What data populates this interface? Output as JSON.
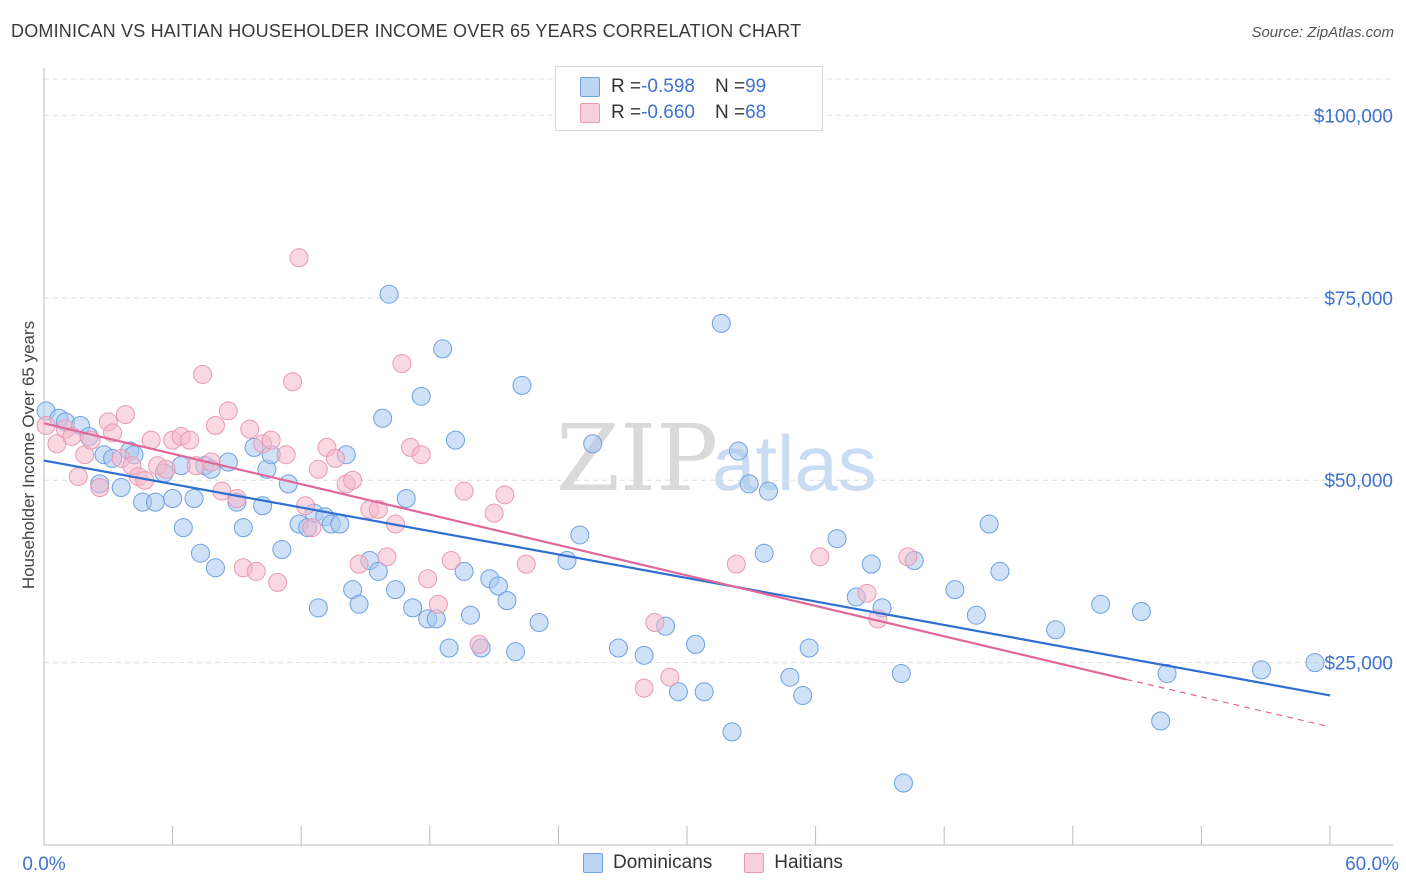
{
  "title": "DOMINICAN VS HAITIAN HOUSEHOLDER INCOME OVER 65 YEARS CORRELATION CHART",
  "source": "Source: ZipAtlas.com",
  "watermark": {
    "zip": "ZIP",
    "atlas": "atlas"
  },
  "legend_top": [
    {
      "r_label": "R = ",
      "r_value": "-0.598",
      "n_label": "N = ",
      "n_value": "99",
      "color": "#a8c8f0"
    },
    {
      "r_label": "R = ",
      "r_value": "-0.660",
      "n_label": "N = ",
      "n_value": "68",
      "color": "#f4b8cb"
    }
  ],
  "chart_data": {
    "type": "scatter",
    "title": "DOMINICAN VS HAITIAN HOUSEHOLDER INCOME OVER 65 YEARS CORRELATION CHART",
    "xlabel": "",
    "ylabel": "Householder Income Over 65 years",
    "xlim": [
      0,
      60
    ],
    "ylim": [
      0,
      105000
    ],
    "x_tick_labels": [
      "0.0%",
      "60.0%"
    ],
    "y_ticks": [
      25000,
      50000,
      75000,
      100000
    ],
    "y_tick_labels": [
      "$25,000",
      "$50,000",
      "$75,000",
      "$100,000"
    ],
    "grid": "horizontal dashed",
    "legend_placement": "bottom-center",
    "series": [
      {
        "name": "Dominicans",
        "color": "#6fa0e0",
        "fill": "#a8c8f0",
        "trend": {
          "x": [
            0,
            60
          ],
          "y": [
            52700,
            20500
          ]
        },
        "points": [
          [
            0.1,
            59500
          ],
          [
            0.7,
            58500
          ],
          [
            1.0,
            58000
          ],
          [
            1.7,
            57500
          ],
          [
            2.1,
            56000
          ],
          [
            2.8,
            53500
          ],
          [
            3.2,
            53000
          ],
          [
            2.6,
            49500
          ],
          [
            3.6,
            49000
          ],
          [
            4.0,
            54000
          ],
          [
            4.2,
            53500
          ],
          [
            4.6,
            47000
          ],
          [
            5.2,
            47000
          ],
          [
            5.6,
            51000
          ],
          [
            6.0,
            47500
          ],
          [
            6.4,
            52000
          ],
          [
            6.5,
            43500
          ],
          [
            7.0,
            47500
          ],
          [
            7.3,
            40000
          ],
          [
            7.5,
            52000
          ],
          [
            7.8,
            51500
          ],
          [
            8.0,
            38000
          ],
          [
            8.6,
            52500
          ],
          [
            9.0,
            47000
          ],
          [
            9.3,
            43500
          ],
          [
            9.8,
            54500
          ],
          [
            10.2,
            46500
          ],
          [
            10.4,
            51500
          ],
          [
            10.6,
            53500
          ],
          [
            11.1,
            40500
          ],
          [
            11.4,
            49500
          ],
          [
            11.9,
            44000
          ],
          [
            12.3,
            43500
          ],
          [
            12.6,
            45500
          ],
          [
            12.8,
            32500
          ],
          [
            13.1,
            45000
          ],
          [
            13.4,
            44000
          ],
          [
            13.8,
            44000
          ],
          [
            14.1,
            53500
          ],
          [
            14.4,
            35000
          ],
          [
            14.7,
            33000
          ],
          [
            15.2,
            39000
          ],
          [
            15.6,
            37500
          ],
          [
            15.8,
            58500
          ],
          [
            16.1,
            75500
          ],
          [
            16.4,
            35000
          ],
          [
            16.9,
            47500
          ],
          [
            17.2,
            32500
          ],
          [
            17.6,
            61500
          ],
          [
            17.9,
            31000
          ],
          [
            18.3,
            31000
          ],
          [
            18.6,
            68000
          ],
          [
            18.9,
            27000
          ],
          [
            19.2,
            55500
          ],
          [
            19.6,
            37500
          ],
          [
            19.9,
            31500
          ],
          [
            20.4,
            27000
          ],
          [
            20.8,
            36500
          ],
          [
            21.2,
            35500
          ],
          [
            21.6,
            33500
          ],
          [
            22.0,
            26500
          ],
          [
            22.3,
            63000
          ],
          [
            23.1,
            30500
          ],
          [
            24.4,
            39000
          ],
          [
            25.0,
            42500
          ],
          [
            25.6,
            55000
          ],
          [
            26.8,
            27000
          ],
          [
            28.0,
            26000
          ],
          [
            29.0,
            30000
          ],
          [
            29.6,
            21000
          ],
          [
            30.4,
            27500
          ],
          [
            30.8,
            21000
          ],
          [
            31.6,
            71500
          ],
          [
            32.4,
            54000
          ],
          [
            32.1,
            15500
          ],
          [
            32.9,
            49500
          ],
          [
            33.6,
            40000
          ],
          [
            33.8,
            48500
          ],
          [
            34.8,
            23000
          ],
          [
            35.4,
            20500
          ],
          [
            35.7,
            27000
          ],
          [
            37.0,
            42000
          ],
          [
            37.9,
            34000
          ],
          [
            38.6,
            38500
          ],
          [
            39.1,
            32500
          ],
          [
            40.0,
            23500
          ],
          [
            40.6,
            39000
          ],
          [
            40.1,
            8500
          ],
          [
            42.5,
            35000
          ],
          [
            43.5,
            31500
          ],
          [
            44.1,
            44000
          ],
          [
            44.6,
            37500
          ],
          [
            47.2,
            29500
          ],
          [
            49.3,
            33000
          ],
          [
            51.2,
            32000
          ],
          [
            52.1,
            17000
          ],
          [
            52.4,
            23500
          ],
          [
            56.8,
            24000
          ],
          [
            59.3,
            25000
          ]
        ]
      },
      {
        "name": "Haitians",
        "color": "#e89ab4",
        "fill": "#f4b8cb",
        "trend": {
          "x": [
            0,
            50.5
          ],
          "y": [
            57800,
            22700
          ]
        },
        "trend_dashed": {
          "x": [
            50.5,
            60
          ],
          "y": [
            22700,
            16200
          ]
        },
        "points": [
          [
            0.1,
            57500
          ],
          [
            0.6,
            55000
          ],
          [
            1.0,
            57000
          ],
          [
            1.3,
            56000
          ],
          [
            1.6,
            50500
          ],
          [
            1.9,
            53500
          ],
          [
            2.2,
            55500
          ],
          [
            2.6,
            49000
          ],
          [
            3.0,
            58000
          ],
          [
            3.2,
            56500
          ],
          [
            3.6,
            53000
          ],
          [
            3.8,
            59000
          ],
          [
            4.1,
            52000
          ],
          [
            4.4,
            50500
          ],
          [
            4.7,
            50000
          ],
          [
            5.0,
            55500
          ],
          [
            5.3,
            52000
          ],
          [
            5.7,
            51500
          ],
          [
            6.0,
            55500
          ],
          [
            6.4,
            56000
          ],
          [
            6.8,
            55500
          ],
          [
            7.1,
            52000
          ],
          [
            7.4,
            64500
          ],
          [
            7.8,
            52500
          ],
          [
            8.0,
            57500
          ],
          [
            8.3,
            48500
          ],
          [
            8.6,
            59500
          ],
          [
            9.0,
            47500
          ],
          [
            9.3,
            38000
          ],
          [
            9.6,
            57000
          ],
          [
            9.9,
            37500
          ],
          [
            10.2,
            55000
          ],
          [
            10.6,
            55500
          ],
          [
            10.9,
            36000
          ],
          [
            11.3,
            53500
          ],
          [
            11.6,
            63500
          ],
          [
            11.9,
            80500
          ],
          [
            12.2,
            46500
          ],
          [
            12.5,
            43500
          ],
          [
            12.8,
            51500
          ],
          [
            13.2,
            54500
          ],
          [
            13.6,
            53000
          ],
          [
            14.1,
            49500
          ],
          [
            14.4,
            50000
          ],
          [
            14.7,
            38500
          ],
          [
            15.2,
            46000
          ],
          [
            15.6,
            46000
          ],
          [
            16.0,
            39500
          ],
          [
            16.4,
            44000
          ],
          [
            16.7,
            66000
          ],
          [
            17.1,
            54500
          ],
          [
            17.6,
            53500
          ],
          [
            17.9,
            36500
          ],
          [
            18.4,
            33000
          ],
          [
            19.0,
            39000
          ],
          [
            19.6,
            48500
          ],
          [
            20.3,
            27500
          ],
          [
            21.0,
            45500
          ],
          [
            21.5,
            48000
          ],
          [
            22.5,
            38500
          ],
          [
            28.0,
            21500
          ],
          [
            28.5,
            30500
          ],
          [
            29.2,
            23000
          ],
          [
            32.3,
            38500
          ],
          [
            36.2,
            39500
          ],
          [
            38.4,
            34500
          ],
          [
            38.9,
            31000
          ],
          [
            40.3,
            39500
          ]
        ]
      }
    ]
  }
}
